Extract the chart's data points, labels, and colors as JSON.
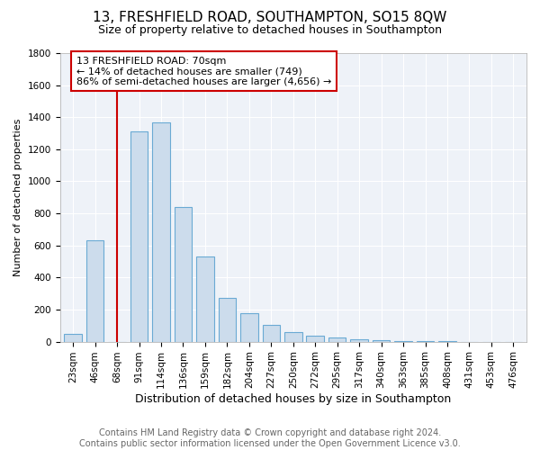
{
  "title": "13, FRESHFIELD ROAD, SOUTHAMPTON, SO15 8QW",
  "subtitle": "Size of property relative to detached houses in Southampton",
  "xlabel": "Distribution of detached houses by size in Southampton",
  "ylabel": "Number of detached properties",
  "footer_line1": "Contains HM Land Registry data © Crown copyright and database right 2024.",
  "footer_line2": "Contains public sector information licensed under the Open Government Licence v3.0.",
  "bins": [
    "23sqm",
    "46sqm",
    "68sqm",
    "91sqm",
    "114sqm",
    "136sqm",
    "159sqm",
    "182sqm",
    "204sqm",
    "227sqm",
    "250sqm",
    "272sqm",
    "295sqm",
    "317sqm",
    "340sqm",
    "363sqm",
    "385sqm",
    "408sqm",
    "431sqm",
    "453sqm",
    "476sqm"
  ],
  "values": [
    50,
    630,
    0,
    1310,
    1370,
    840,
    530,
    275,
    180,
    105,
    60,
    35,
    25,
    15,
    10,
    5,
    2,
    1,
    0,
    0,
    0
  ],
  "bar_color": "#ccdcec",
  "bar_edge_color": "#6aaad4",
  "property_line_x": 2,
  "property_line_color": "#cc0000",
  "ylim": [
    0,
    1800
  ],
  "annotation_text": "13 FRESHFIELD ROAD: 70sqm\n← 14% of detached houses are smaller (749)\n86% of semi-detached houses are larger (4,656) →",
  "annotation_box_color": "#cc0000",
  "annotation_bg": "white",
  "title_fontsize": 11,
  "subtitle_fontsize": 9,
  "ylabel_fontsize": 8,
  "xlabel_fontsize": 9,
  "tick_fontsize": 7.5,
  "annot_fontsize": 8,
  "footer_fontsize": 7,
  "bg_color": "#eef2f8"
}
